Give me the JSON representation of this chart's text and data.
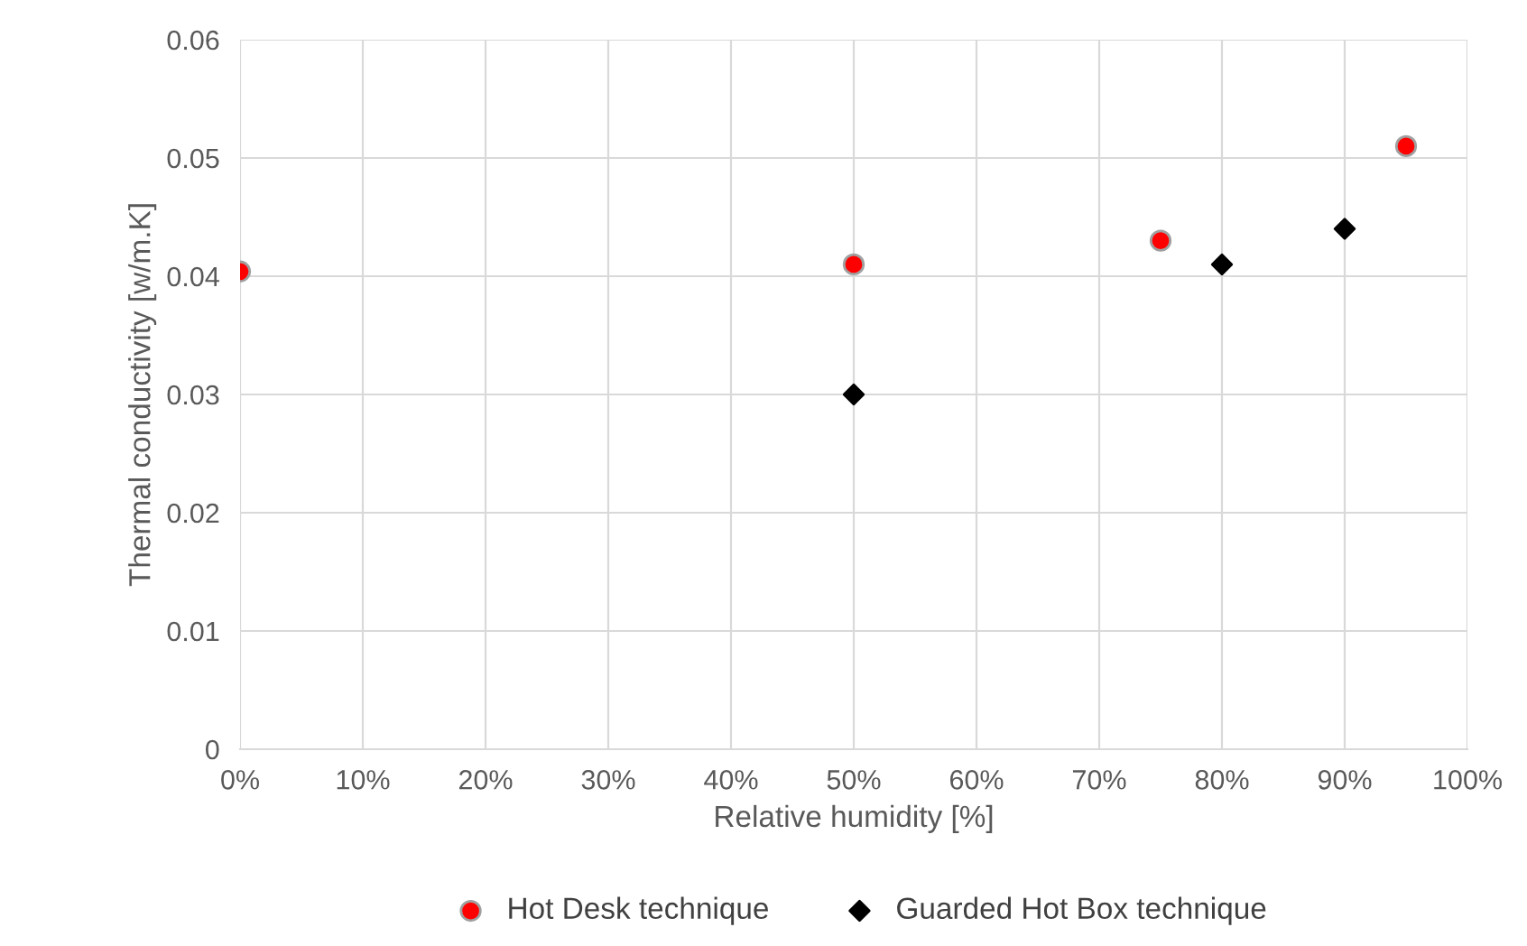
{
  "chart_data": {
    "type": "scatter",
    "xlabel": "Relative humidity [%]",
    "ylabel": "Thermal conductivity [w/m.K]",
    "series": [
      {
        "name": "Hot Desk technique",
        "color": "#ff0000",
        "marker": "circle",
        "x": [
          0,
          50,
          75,
          95
        ],
        "values": [
          0.0404,
          0.041,
          0.043,
          0.051
        ]
      },
      {
        "name": "Guarded Hot Box technique",
        "color": "#000000",
        "marker": "diamond",
        "x": [
          50,
          80,
          90
        ],
        "values": [
          0.03,
          0.041,
          0.044
        ]
      }
    ],
    "xlim": [
      0,
      100
    ],
    "xticks": [
      {
        "value": 0,
        "label": "0%"
      },
      {
        "value": 10,
        "label": "10%"
      },
      {
        "value": 20,
        "label": "20%"
      },
      {
        "value": 30,
        "label": "30%"
      },
      {
        "value": 40,
        "label": "40%"
      },
      {
        "value": 50,
        "label": "50%"
      },
      {
        "value": 60,
        "label": "60%"
      },
      {
        "value": 70,
        "label": "70%"
      },
      {
        "value": 80,
        "label": "80%"
      },
      {
        "value": 90,
        "label": "90%"
      },
      {
        "value": 100,
        "label": "100%"
      }
    ],
    "ylim": [
      0,
      0.06
    ],
    "yticks": [
      {
        "value": 0,
        "label": "0"
      },
      {
        "value": 0.01,
        "label": "0.01"
      },
      {
        "value": 0.02,
        "label": "0.02"
      },
      {
        "value": 0.03,
        "label": "0.03"
      },
      {
        "value": 0.04,
        "label": "0.04"
      },
      {
        "value": 0.05,
        "label": "0.05"
      },
      {
        "value": 0.06,
        "label": "0.06"
      }
    ],
    "grid": true,
    "legend": "bottom"
  }
}
